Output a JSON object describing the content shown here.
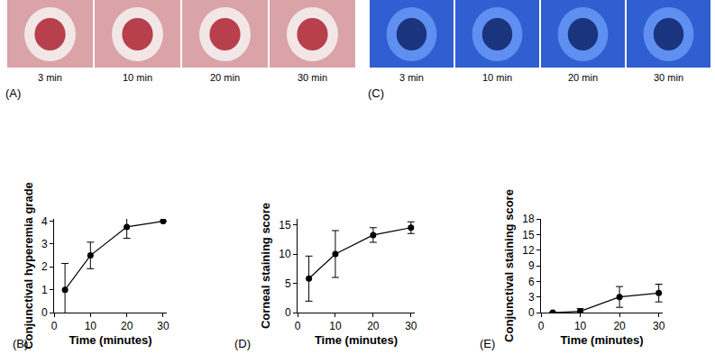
{
  "images": [
    {
      "panel": "(A)",
      "captions": [
        "3 min",
        "10 min",
        "20 min",
        "30 min"
      ]
    },
    {
      "panel": "(C)",
      "captions": [
        "3 min",
        "10 min",
        "20 min",
        "30 min"
      ]
    }
  ],
  "chart_data": [
    {
      "type": "line",
      "panel": "(B)",
      "x": [
        3,
        10,
        20,
        30
      ],
      "values": [
        1,
        2.5,
        3.75,
        4
      ],
      "error": [
        1.15,
        0.58,
        0.5,
        0
      ],
      "xlabel": "Time (minutes)",
      "ylabel": "Conjunctival hyperemia grade",
      "xlim": [
        0,
        31
      ],
      "xticks": [
        0,
        10,
        20,
        30
      ],
      "ylim": [
        0,
        4.1
      ],
      "yticks": [
        0,
        1,
        2,
        3,
        4
      ],
      "color": "#000000",
      "marker": "circle",
      "grid": false
    },
    {
      "type": "line",
      "panel": "(D)",
      "x": [
        3,
        10,
        20,
        30
      ],
      "values": [
        5.8,
        10,
        13.25,
        14.5
      ],
      "error": [
        3.85,
        4,
        1.25,
        1
      ],
      "xlabel": "Time (minutes)",
      "ylabel": "Corneal staining score",
      "xlim": [
        0,
        31
      ],
      "xticks": [
        0,
        10,
        20,
        30
      ],
      "ylim": [
        0,
        16
      ],
      "yticks": [
        0,
        5,
        10,
        15
      ],
      "color": "#000000",
      "marker": "circle",
      "grid": false
    },
    {
      "type": "line",
      "panel": "(E)",
      "x": [
        3,
        10,
        20,
        30
      ],
      "values": [
        0,
        0.25,
        3,
        3.75
      ],
      "error": [
        0,
        0.5,
        2,
        1.7
      ],
      "xlabel": "Time (minutes)",
      "ylabel": "Conjunctival staining score",
      "xlim": [
        0,
        31
      ],
      "xticks": [
        0,
        10,
        20,
        30
      ],
      "ylim": [
        0,
        18
      ],
      "yticks": [
        0,
        3,
        6,
        9,
        12,
        15,
        18
      ],
      "color": "#000000",
      "marker": "circle",
      "grid": false
    }
  ]
}
